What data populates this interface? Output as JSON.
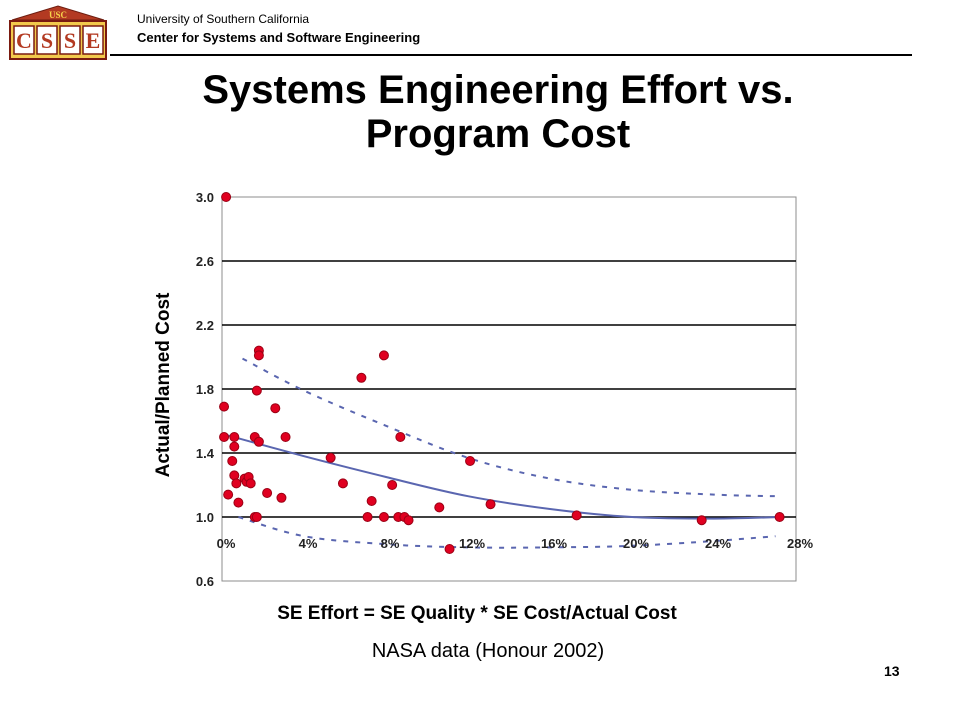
{
  "header": {
    "university": "University of Southern California",
    "center": "Center for Systems and Software Engineering",
    "logo_top_text": "USC",
    "logo_letters": [
      "C",
      "S",
      "S",
      "E"
    ]
  },
  "colors": {
    "marker": "#e00020",
    "marker_edge": "#9a0014",
    "trend": "#5a66b0",
    "bound": "#5a66b0"
  },
  "title_line1": "Systems Engineering Effort vs.",
  "title_line2": "Program Cost",
  "footer": {
    "source": "NASA data (Honour 2002)",
    "page_number": "13"
  },
  "chart_data": {
    "type": "scatter",
    "xlabel": "SE Effort = SE Quality * SE Cost/Actual Cost",
    "ylabel": "Actual/Planned Cost",
    "xlim": [
      0,
      28
    ],
    "ylim": [
      0.6,
      3.0
    ],
    "x_ticks": [
      "0%",
      "4%",
      "8%",
      "12%",
      "16%",
      "20%",
      "24%",
      "28%"
    ],
    "x_tick_values": [
      0,
      4,
      8,
      12,
      16,
      20,
      24,
      28
    ],
    "y_ticks": [
      "0.6",
      "1.0",
      "1.4",
      "1.8",
      "2.2",
      "2.6",
      "3.0"
    ],
    "y_tick_values": [
      0.6,
      1.0,
      1.4,
      1.8,
      2.2,
      2.6,
      3.0
    ],
    "grid": {
      "horizontal": true,
      "vertical": false
    },
    "points": [
      [
        0.2,
        3.0
      ],
      [
        0.1,
        1.69
      ],
      [
        0.1,
        1.5
      ],
      [
        0.3,
        1.14
      ],
      [
        0.6,
        1.5
      ],
      [
        0.6,
        1.44
      ],
      [
        0.5,
        1.35
      ],
      [
        0.6,
        1.26
      ],
      [
        0.7,
        1.21
      ],
      [
        0.8,
        1.09
      ],
      [
        1.1,
        1.24
      ],
      [
        1.2,
        1.22
      ],
      [
        1.3,
        1.25
      ],
      [
        1.4,
        1.21
      ],
      [
        1.6,
        1.0
      ],
      [
        1.7,
        1.0
      ],
      [
        1.6,
        1.5
      ],
      [
        1.7,
        1.79
      ],
      [
        1.8,
        1.47
      ],
      [
        1.8,
        2.04
      ],
      [
        1.8,
        2.01
      ],
      [
        2.2,
        1.15
      ],
      [
        2.6,
        1.68
      ],
      [
        2.9,
        1.12
      ],
      [
        3.1,
        1.5
      ],
      [
        5.3,
        1.37
      ],
      [
        5.9,
        1.21
      ],
      [
        6.8,
        1.87
      ],
      [
        7.1,
        1.0
      ],
      [
        7.3,
        1.1
      ],
      [
        7.9,
        1.0
      ],
      [
        7.9,
        2.01
      ],
      [
        8.3,
        1.2
      ],
      [
        8.6,
        1.0
      ],
      [
        8.7,
        1.5
      ],
      [
        8.9,
        1.0
      ],
      [
        9.1,
        0.98
      ],
      [
        10.6,
        1.06
      ],
      [
        11.1,
        0.8
      ],
      [
        12.1,
        1.35
      ],
      [
        13.1,
        1.08
      ],
      [
        17.3,
        1.01
      ],
      [
        23.4,
        0.98
      ],
      [
        27.2,
        1.0
      ]
    ],
    "trend_line": [
      [
        0,
        1.52
      ],
      [
        4,
        1.38
      ],
      [
        8,
        1.25
      ],
      [
        12,
        1.13
      ],
      [
        16,
        1.05
      ],
      [
        20,
        1.0
      ],
      [
        24,
        0.99
      ],
      [
        27.2,
        1.0
      ]
    ],
    "upper_bound": [
      [
        1,
        1.99
      ],
      [
        4,
        1.79
      ],
      [
        8,
        1.57
      ],
      [
        12,
        1.37
      ],
      [
        16,
        1.24
      ],
      [
        20,
        1.17
      ],
      [
        24,
        1.14
      ],
      [
        27,
        1.13
      ]
    ],
    "lower_bound": [
      [
        0.8,
        1.0
      ],
      [
        4,
        0.88
      ],
      [
        8,
        0.83
      ],
      [
        12,
        0.81
      ],
      [
        16,
        0.81
      ],
      [
        20,
        0.82
      ],
      [
        24,
        0.85
      ],
      [
        27,
        0.88
      ]
    ]
  }
}
